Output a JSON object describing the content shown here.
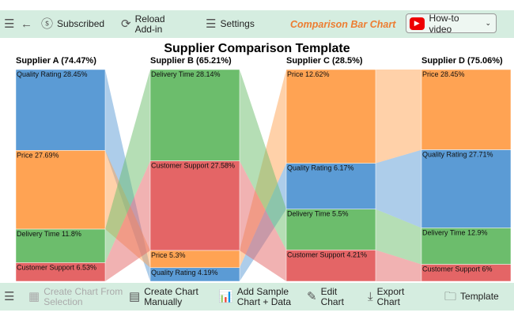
{
  "toolbar": {
    "subscribed": "Subscribed",
    "reload": "Reload",
    "addin": "Add-in",
    "settings": "Settings",
    "brand": "Comparison Bar Chart",
    "howto": "How-to video"
  },
  "bottom_toolbar": {
    "create_from_selection_1": "Create Chart From",
    "create_from_selection_2": "Selection",
    "create_manually_1": "Create Chart",
    "create_manually_2": "Manually",
    "add_sample_1": "Add Sample",
    "add_sample_2": "Chart + Data",
    "edit_1": "Edit",
    "edit_2": "Chart",
    "export_1": "Export",
    "export_2": "Chart",
    "template": "Template"
  },
  "chart_data": {
    "type": "stacked-bar-comparison",
    "title": "Supplier Comparison Template",
    "colors": {
      "Quality Rating": "#5b9bd5",
      "Price": "#ffa353",
      "Delivery Time": "#6cbd6c",
      "Customer Support": "#e46566"
    },
    "suppliers": [
      {
        "name": "Supplier A (74.47%)",
        "segments": [
          {
            "category": "Quality Rating",
            "value": 28.45,
            "label": "Quality Rating 28.45%"
          },
          {
            "category": "Price",
            "value": 27.69,
            "label": "Price 27.69%"
          },
          {
            "category": "Delivery Time",
            "value": 11.8,
            "label": "Delivery Time 11.8%"
          },
          {
            "category": "Customer Support",
            "value": 6.53,
            "label": "Customer Support 6.53%"
          }
        ]
      },
      {
        "name": "Supplier B (65.21%)",
        "segments": [
          {
            "category": "Delivery Time",
            "value": 28.14,
            "label": "Delivery Time 28.14%"
          },
          {
            "category": "Customer Support",
            "value": 27.58,
            "label": "Customer Support 27.58%"
          },
          {
            "category": "Price",
            "value": 5.3,
            "label": "Price 5.3%"
          },
          {
            "category": "Quality Rating",
            "value": 4.19,
            "label": "Quality Rating 4.19%"
          }
        ]
      },
      {
        "name": "Supplier C (28.5%)",
        "segments": [
          {
            "category": "Price",
            "value": 12.62,
            "label": "Price 12.62%"
          },
          {
            "category": "Quality Rating",
            "value": 6.17,
            "label": "Quality Rating 6.17%"
          },
          {
            "category": "Delivery Time",
            "value": 5.5,
            "label": "Delivery Time 5.5%"
          },
          {
            "category": "Customer Support",
            "value": 4.21,
            "label": "Customer Support 4.21%"
          }
        ]
      },
      {
        "name": "Supplier D (75.06%)",
        "segments": [
          {
            "category": "Price",
            "value": 28.45,
            "label": "Price 28.45%"
          },
          {
            "category": "Quality Rating",
            "value": 27.71,
            "label": "Quality Rating 27.71%"
          },
          {
            "category": "Delivery Time",
            "value": 12.9,
            "label": "Delivery Time 12.9%"
          },
          {
            "category": "Customer Support",
            "value": 6,
            "label": "Customer Support 6%"
          }
        ]
      }
    ]
  }
}
